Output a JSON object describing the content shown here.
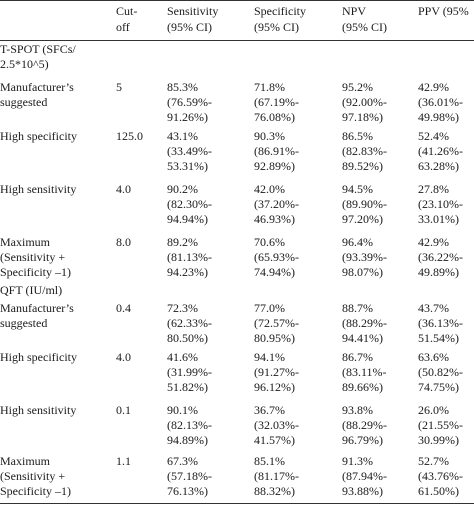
{
  "table": {
    "headers": {
      "cutoff": "Cut-\noff",
      "sensitivity": "Sensitivity\n(95% CI)",
      "specificity": "Specificity\n(95% CI)",
      "npv": "NPV\n(95% CI)",
      "ppv": "PPV (95%"
    },
    "groups": [
      {
        "label": "T-SPOT (SFCs/\n  2.5*10^5)",
        "rows": [
          {
            "name": "Manufacturer’s\n  suggested",
            "cutoff": "5",
            "sensitivity": "85.3%\n(76.59%-\n91.26%)",
            "specificity": "71.8%\n(67.19%-\n76.08%)",
            "npv": "95.2%\n(92.00%-\n97.18%)",
            "ppv": "42.9%\n(36.01%-\n49.98%)"
          },
          {
            "name": "High specificity",
            "cutoff": "125.0",
            "sensitivity": "43.1%\n(33.49%-\n53.31%)",
            "specificity": "90.3%\n(86.91%-\n92.89%)",
            "npv": "86.5%\n(82.83%-\n89.52%)",
            "ppv": "52.4%\n(41.26%-\n63.28%)"
          },
          {
            "name": "High sensitivity",
            "cutoff": "4.0",
            "sensitivity": "90.2%\n(82.30%-\n94.94%)",
            "specificity": "42.0%\n(37.20%-\n46.93%)",
            "npv": "94.5%\n(89.90%-\n97.20%)",
            "ppv": "27.8%\n(23.10%-\n33.01%)"
          },
          {
            "name": "Maximum\n  (Sensitivity +\n  Specificity –1)",
            "cutoff": "8.0",
            "sensitivity": "89.2%\n(81.13%-\n94.23%)",
            "specificity": "70.6%\n(65.93%-\n74.94%)",
            "npv": "96.4%\n(93.39%-\n98.07%)",
            "ppv": "42.9%\n(36.22%-\n49.89%)"
          }
        ]
      },
      {
        "label": "QFT (IU/ml)",
        "rows": [
          {
            "name": "Manufacturer’s\n  suggested",
            "cutoff": "0.4",
            "sensitivity": "72.3%\n(62.33%-\n80.50%)",
            "specificity": "77.0%\n(72.57%-\n80.95%)",
            "npv": "88.7%\n(88.29%-\n94.41%)",
            "ppv": "43.7%\n(36.13%-\n51.54%)"
          },
          {
            "name": "High specificity",
            "cutoff": "4.0",
            "sensitivity": "41.6%\n(31.99%-\n51.82%)",
            "specificity": "94.1%\n(91.27%-\n96.12%)",
            "npv": "86.7%\n(83.11%-\n89.66%)",
            "ppv": "63.6%\n(50.82%-\n74.75%)"
          },
          {
            "name": "High sensitivity",
            "cutoff": "0.1",
            "sensitivity": "90.1%\n(82.13%-\n94.89%)",
            "specificity": "36.7%\n(32.03%-\n41.57%)",
            "npv": "93.8%\n(88.29%-\n96.79%)",
            "ppv": "26.0%\n(21.55%-\n30.99%)"
          },
          {
            "name": "Maximum\n  (Sensitivity +\n  Specificity –1)",
            "cutoff": "1.1",
            "sensitivity": "67.3%\n(57.18%-\n76.13%)",
            "specificity": "85.1%\n(81.17%-\n88.32%)",
            "npv": "91.3%\n(87.94%-\n93.88%)",
            "ppv": "52.7%\n(43.76%-\n61.50%)"
          }
        ]
      }
    ]
  }
}
